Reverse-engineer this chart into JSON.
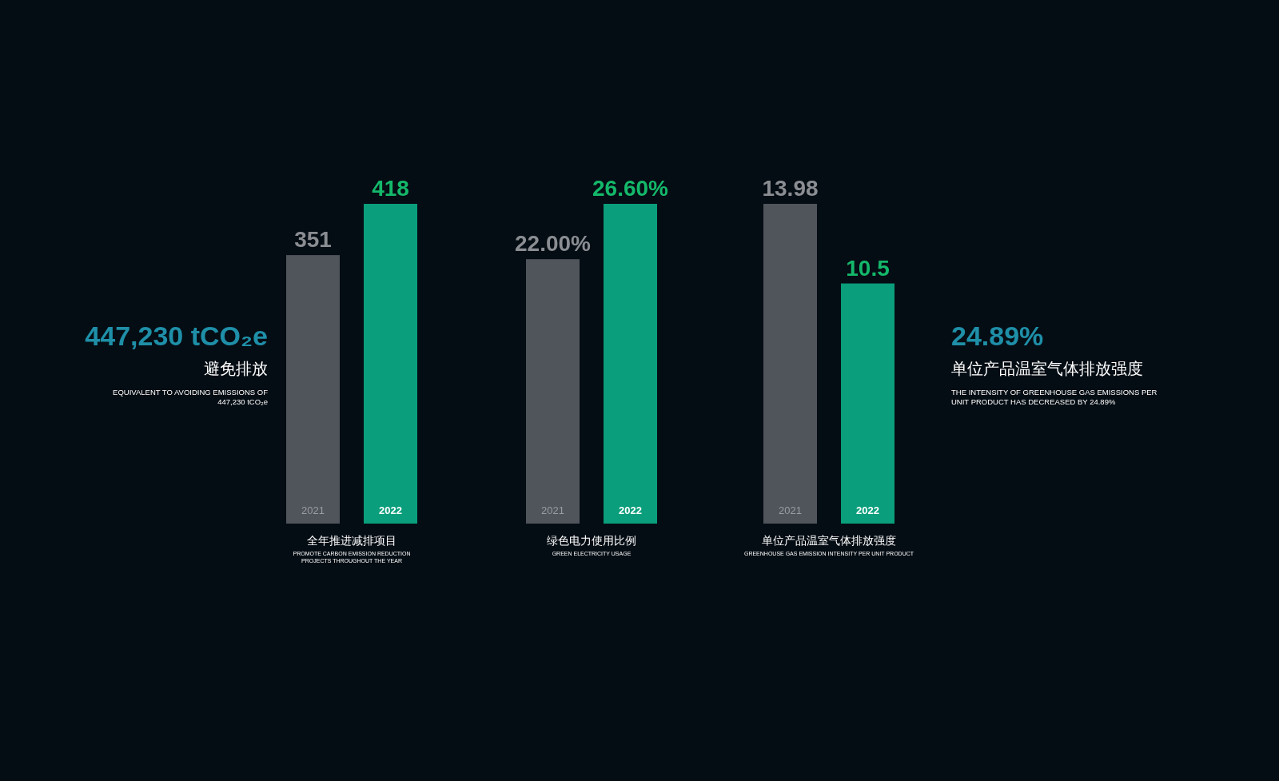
{
  "chart_data": [
    {
      "type": "other",
      "title": "447,230 tCO₂e",
      "subtitle": "避免排放",
      "annotations": [
        "EQUIVALENT TO AVOIDING EMISSIONS OF",
        "447,230 tCO₂e"
      ]
    },
    {
      "type": "bar",
      "categories": [
        "2021",
        "2022"
      ],
      "values": [
        351,
        418
      ],
      "colors": [
        "#50545b",
        "#0a9e7c"
      ],
      "value_labels": [
        "351",
        "418"
      ],
      "xlabel": "全年推进减排项目",
      "annotations": [
        "PROMOTE CARBON EMISSION REDUCTION",
        "PROJECTS THROUGHOUT THE YEAR"
      ]
    },
    {
      "type": "bar",
      "categories": [
        "2021",
        "2022"
      ],
      "values": [
        22.0,
        26.6
      ],
      "colors": [
        "#50545b",
        "#0a9e7c"
      ],
      "value_labels": [
        "22.00%",
        "26.60%"
      ],
      "xlabel": "绿色电力使用比例",
      "annotations": [
        "GREEN ELECTRICITY USAGE"
      ]
    },
    {
      "type": "bar",
      "categories": [
        "2021",
        "2022"
      ],
      "values": [
        13.98,
        10.5
      ],
      "colors": [
        "#50545b",
        "#0a9e7c"
      ],
      "value_labels": [
        "13.98",
        "10.5"
      ],
      "xlabel": "单位产品温室气体排放强度",
      "annotations": [
        "GREENHOUSE GAS EMISSION INTENSITY PER UNIT PRODUCT"
      ]
    },
    {
      "type": "other",
      "title": "24.89%",
      "subtitle": "单位产品温室气体排放强度",
      "annotations": [
        "THE INTENSITY OF GREENHOUSE GAS EMISSIONS PER",
        "UNIT PRODUCT HAS DECREASED BY 24.89%"
      ]
    }
  ]
}
